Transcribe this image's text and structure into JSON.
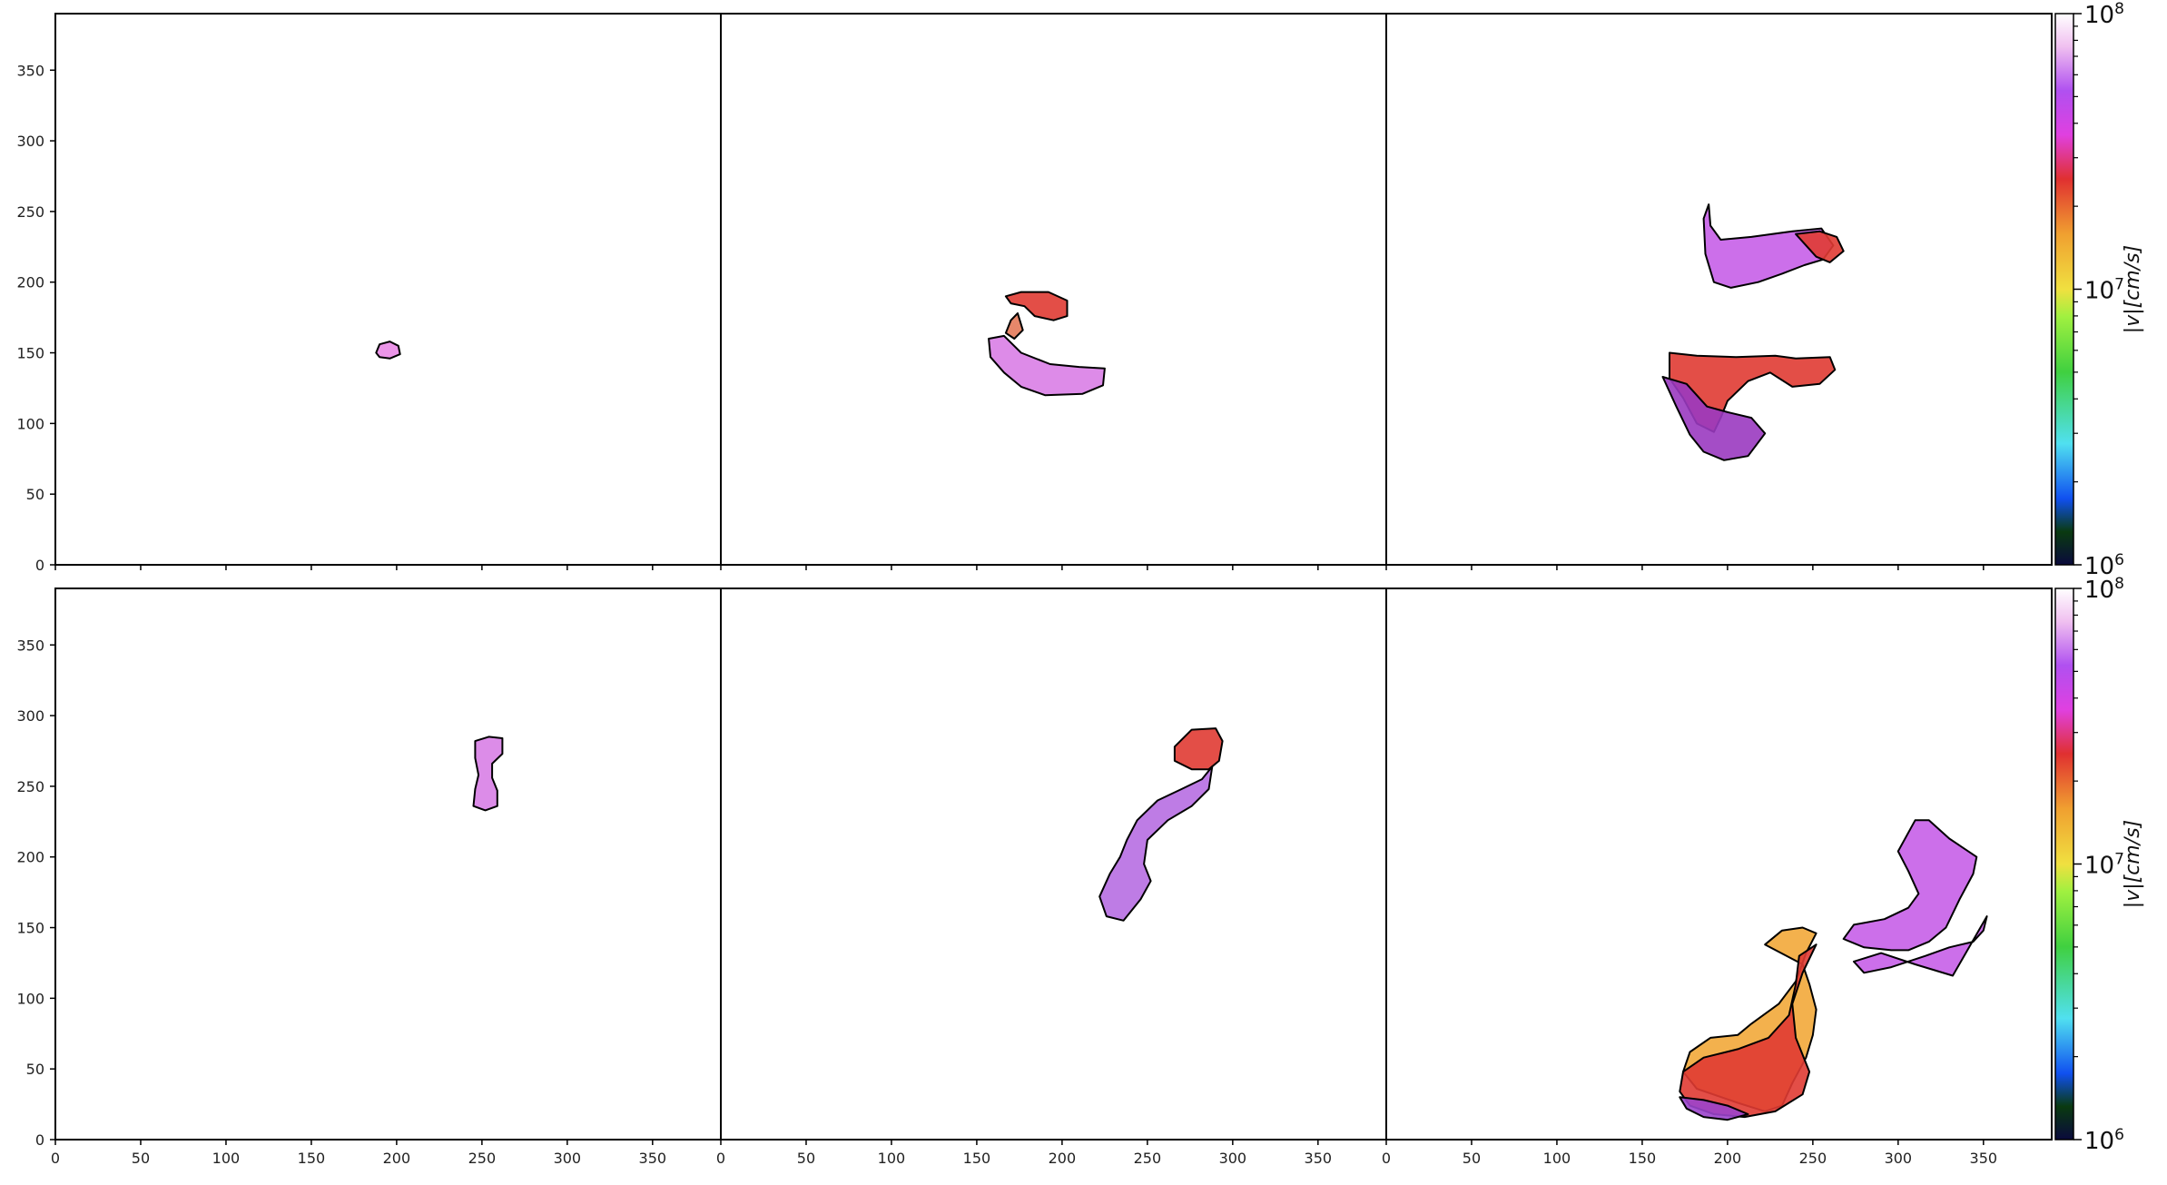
{
  "chart_data": [
    {
      "type": "heatmap",
      "panel": "top-left",
      "xlim": [
        0,
        390
      ],
      "ylim": [
        0,
        390
      ],
      "xticks": [],
      "yticks": [
        0,
        50,
        100,
        150,
        200,
        250,
        300,
        350
      ],
      "blobs": [
        {
          "color": "#e98ae6",
          "points": [
            [
              188,
              150
            ],
            [
              190,
              156
            ],
            [
              196,
              158
            ],
            [
              201,
              155
            ],
            [
              202,
              149
            ],
            [
              196,
              146
            ],
            [
              190,
              147
            ]
          ]
        }
      ]
    },
    {
      "type": "heatmap",
      "panel": "top-middle",
      "xlim": [
        0,
        390
      ],
      "ylim": [
        0,
        390
      ],
      "xticks": [],
      "yticks": [],
      "blobs": [
        {
          "color": "#e03b33",
          "points": [
            [
              167,
              190
            ],
            [
              176,
              193
            ],
            [
              192,
              193
            ],
            [
              203,
              187
            ],
            [
              203,
              176
            ],
            [
              195,
              173
            ],
            [
              184,
              176
            ],
            [
              178,
              183
            ],
            [
              170,
              185
            ]
          ]
        },
        {
          "color": "#d97ee6",
          "points": [
            [
              157,
              160
            ],
            [
              166,
              162
            ],
            [
              176,
              150
            ],
            [
              193,
              142
            ],
            [
              210,
              140
            ],
            [
              225,
              139
            ],
            [
              224,
              127
            ],
            [
              212,
              121
            ],
            [
              190,
              120
            ],
            [
              176,
              126
            ],
            [
              166,
              136
            ],
            [
              158,
              147
            ]
          ]
        },
        {
          "color": "#e47a5a",
          "points": [
            [
              174,
              178
            ],
            [
              170,
              173
            ],
            [
              167,
              164
            ],
            [
              172,
              160
            ],
            [
              177,
              166
            ]
          ]
        }
      ]
    },
    {
      "type": "heatmap",
      "panel": "top-right",
      "xlim": [
        0,
        390
      ],
      "ylim": [
        0,
        390
      ],
      "xticks": [],
      "yticks": [],
      "blobs": [
        {
          "color": "#c65fe8",
          "points": [
            [
              189,
              255
            ],
            [
              190,
              240
            ],
            [
              196,
              230
            ],
            [
              214,
              232
            ],
            [
              238,
              236
            ],
            [
              255,
              238
            ],
            [
              262,
              226
            ],
            [
              256,
              216
            ],
            [
              245,
              212
            ],
            [
              232,
              206
            ],
            [
              218,
              200
            ],
            [
              202,
              196
            ],
            [
              192,
              200
            ],
            [
              187,
              220
            ],
            [
              186,
              245
            ]
          ]
        },
        {
          "color": "#e03b33",
          "points": [
            [
              240,
              234
            ],
            [
              254,
              236
            ],
            [
              264,
              232
            ],
            [
              268,
              222
            ],
            [
              260,
              214
            ],
            [
              252,
              218
            ],
            [
              246,
              226
            ]
          ]
        },
        {
          "color": "#e03b33",
          "points": [
            [
              166,
              150
            ],
            [
              182,
              148
            ],
            [
              205,
              147
            ],
            [
              228,
              148
            ],
            [
              240,
              146
            ],
            [
              260,
              147
            ],
            [
              263,
              138
            ],
            [
              254,
              128
            ],
            [
              238,
              126
            ],
            [
              225,
              136
            ],
            [
              212,
              130
            ],
            [
              200,
              116
            ],
            [
              196,
              104
            ],
            [
              192,
              94
            ],
            [
              182,
              100
            ],
            [
              174,
              118
            ],
            [
              166,
              132
            ]
          ]
        },
        {
          "color": "#9a3ac0",
          "points": [
            [
              162,
              133
            ],
            [
              170,
              112
            ],
            [
              178,
              92
            ],
            [
              186,
              80
            ],
            [
              198,
              74
            ],
            [
              212,
              77
            ],
            [
              222,
              93
            ],
            [
              214,
              104
            ],
            [
              200,
              108
            ],
            [
              188,
              112
            ],
            [
              176,
              128
            ]
          ]
        }
      ]
    },
    {
      "type": "heatmap",
      "panel": "bottom-left",
      "xlim": [
        0,
        390
      ],
      "ylim": [
        0,
        390
      ],
      "xticks": [
        0,
        50,
        100,
        150,
        200,
        250,
        300,
        350
      ],
      "yticks": [
        0,
        50,
        100,
        150,
        200,
        250,
        300,
        350
      ],
      "blobs": [
        {
          "color": "#d87fe6",
          "points": [
            [
              246,
              282
            ],
            [
              254,
              285
            ],
            [
              262,
              284
            ],
            [
              262,
              273
            ],
            [
              256,
              266
            ],
            [
              256,
              256
            ],
            [
              259,
              247
            ],
            [
              259,
              236
            ],
            [
              252,
              233
            ],
            [
              245,
              236
            ],
            [
              246,
              248
            ],
            [
              248,
              258
            ],
            [
              246,
              270
            ]
          ]
        }
      ]
    },
    {
      "type": "heatmap",
      "panel": "bottom-middle",
      "xlim": [
        0,
        390
      ],
      "ylim": [
        0,
        390
      ],
      "xticks": [
        0,
        50,
        100,
        150,
        200,
        250,
        300,
        350
      ],
      "yticks": [],
      "blobs": [
        {
          "color": "#e03b33",
          "points": [
            [
              266,
              278
            ],
            [
              276,
              290
            ],
            [
              290,
              291
            ],
            [
              294,
              282
            ],
            [
              292,
              268
            ],
            [
              286,
              262
            ],
            [
              276,
              262
            ],
            [
              266,
              268
            ]
          ]
        },
        {
          "color": "#b76ee2",
          "points": [
            [
              288,
              264
            ],
            [
              282,
              255
            ],
            [
              270,
              248
            ],
            [
              256,
              240
            ],
            [
              244,
              226
            ],
            [
              238,
              212
            ],
            [
              234,
              200
            ],
            [
              228,
              188
            ],
            [
              222,
              172
            ],
            [
              226,
              158
            ],
            [
              236,
              155
            ],
            [
              246,
              170
            ],
            [
              252,
              183
            ],
            [
              248,
              195
            ],
            [
              250,
              212
            ],
            [
              262,
              226
            ],
            [
              276,
              236
            ],
            [
              286,
              248
            ]
          ]
        }
      ]
    },
    {
      "type": "heatmap",
      "panel": "bottom-right",
      "xlim": [
        0,
        390
      ],
      "ylim": [
        0,
        390
      ],
      "xticks": [
        0,
        50,
        100,
        150,
        200,
        250,
        300,
        350
      ],
      "yticks": [],
      "blobs": [
        {
          "color": "#f2a93a",
          "points": [
            [
              222,
              138
            ],
            [
              232,
              148
            ],
            [
              244,
              150
            ],
            [
              252,
              146
            ],
            [
              246,
              132
            ],
            [
              240,
              112
            ],
            [
              230,
              96
            ],
            [
              214,
              82
            ],
            [
              206,
              74
            ],
            [
              190,
              72
            ],
            [
              178,
              62
            ],
            [
              174,
              48
            ],
            [
              182,
              36
            ],
            [
              206,
              26
            ],
            [
              222,
              20
            ],
            [
              232,
              24
            ],
            [
              238,
              40
            ],
            [
              246,
              58
            ],
            [
              250,
              74
            ],
            [
              252,
              92
            ],
            [
              248,
              110
            ],
            [
              244,
              124
            ]
          ]
        },
        {
          "color": "#e03b33",
          "points": [
            [
              252,
              138
            ],
            [
              244,
              118
            ],
            [
              238,
              96
            ],
            [
              240,
              72
            ],
            [
              248,
              48
            ],
            [
              244,
              32
            ],
            [
              228,
              20
            ],
            [
              210,
              16
            ],
            [
              192,
              18
            ],
            [
              178,
              24
            ],
            [
              172,
              34
            ],
            [
              174,
              48
            ],
            [
              186,
              58
            ],
            [
              206,
              64
            ],
            [
              224,
              72
            ],
            [
              236,
              88
            ],
            [
              240,
              110
            ],
            [
              242,
              130
            ]
          ]
        },
        {
          "color": "#9b44cc",
          "points": [
            [
              172,
              30
            ],
            [
              176,
              22
            ],
            [
              186,
              16
            ],
            [
              200,
              14
            ],
            [
              212,
              18
            ],
            [
              200,
              24
            ],
            [
              186,
              28
            ]
          ]
        },
        {
          "color": "#c65fe8",
          "points": [
            [
              310,
              226
            ],
            [
              318,
              226
            ],
            [
              330,
              213
            ],
            [
              346,
              200
            ],
            [
              344,
              188
            ],
            [
              336,
              170
            ],
            [
              328,
              150
            ],
            [
              318,
              140
            ],
            [
              306,
              134
            ],
            [
              296,
              134
            ],
            [
              280,
              136
            ],
            [
              268,
              142
            ],
            [
              274,
              152
            ],
            [
              292,
              156
            ],
            [
              306,
              164
            ],
            [
              312,
              174
            ],
            [
              306,
              190
            ],
            [
              300,
              204
            ]
          ]
        },
        {
          "color": "#c65fe8",
          "points": [
            [
              274,
              126
            ],
            [
              290,
              132
            ],
            [
              310,
              124
            ],
            [
              332,
              116
            ],
            [
              352,
              158
            ],
            [
              350,
              148
            ],
            [
              344,
              140
            ],
            [
              330,
              136
            ],
            [
              316,
              130
            ],
            [
              296,
              122
            ],
            [
              280,
              118
            ]
          ]
        }
      ]
    }
  ],
  "colorbar": [
    {
      "row": "top",
      "min_label": "10",
      "min_exp": "6",
      "mid_label": "10",
      "mid_exp": "7",
      "max_label": "10",
      "max_exp": "8",
      "title": "|v|[cm/s]"
    },
    {
      "row": "bottom",
      "min_label": "10",
      "min_exp": "6",
      "mid_label": "10",
      "mid_exp": "7",
      "max_label": "10",
      "max_exp": "8",
      "title": "|v|[cm/s]"
    }
  ],
  "colormap_stops": [
    "#0a0a3c",
    "#0a3a10",
    "#1050f0",
    "#50e0f0",
    "#40d040",
    "#a0f040",
    "#f0e040",
    "#f0a030",
    "#e03030",
    "#e040e0",
    "#b050f0",
    "#f0c0f0",
    "#ffffff"
  ]
}
